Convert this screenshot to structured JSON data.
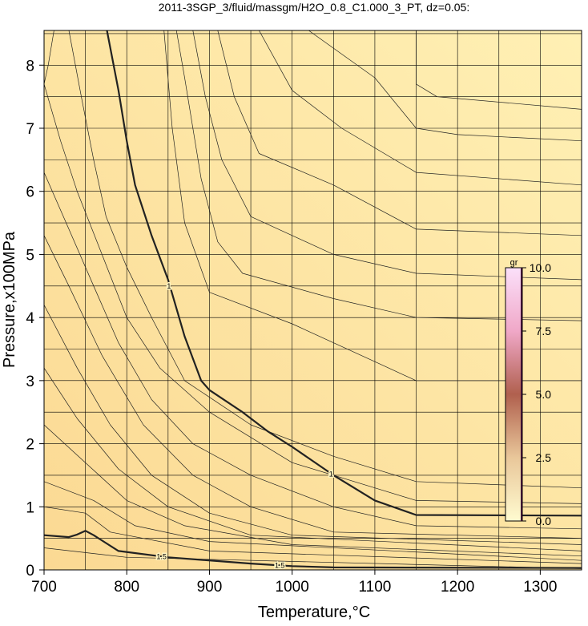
{
  "chart_data": {
    "type": "contour",
    "title": "2011-3SGP_3/fluid/massgm/H2O_0.8_C1.000_3_PT, dz=0.05:",
    "x_label": "Temperature,°C",
    "y_label": "Pressure,x100MPa",
    "xlim": [
      700,
      1350
    ],
    "ylim": [
      0,
      8.55
    ],
    "xticks": [
      700,
      800,
      900,
      1000,
      1100,
      1200,
      1300
    ],
    "yticks": [
      0,
      1,
      2,
      3,
      4,
      5,
      6,
      7,
      8
    ],
    "xgrid": [
      700,
      750,
      800,
      850,
      900,
      950,
      1000,
      1050,
      1100,
      1150,
      1200,
      1250,
      1300,
      1350
    ],
    "ygrid": [
      0.5,
      1,
      1.5,
      2,
      2.5,
      3,
      3.5,
      4,
      4.5,
      5,
      5.5,
      6,
      6.5,
      7,
      7.5,
      8,
      8.5
    ],
    "background": [
      "#fbd993",
      "#fff0b4"
    ],
    "contour_color": "#222222",
    "contours": [
      {
        "x": [
          776,
          790,
          800,
          810,
          830,
          850,
          870,
          890,
          900,
          940,
          970,
          1000,
          1050,
          1100,
          1150,
          1350
        ],
        "y": [
          8.55,
          7.6,
          6.8,
          6.1,
          5.3,
          4.6,
          3.7,
          3.0,
          2.85,
          2.5,
          2.2,
          1.95,
          1.5,
          1.1,
          0.87,
          0.86
        ],
        "linewidth": 2.2
      },
      {
        "x": [
          700,
          730,
          740,
          750,
          760,
          790,
          850,
          950,
          1000,
          1050,
          1350
        ],
        "y": [
          0.55,
          0.52,
          0.56,
          0.62,
          0.55,
          0.3,
          0.2,
          0.1,
          0.06,
          0.04,
          0.03
        ],
        "linewidth": 2.2
      },
      {
        "x": [
          1150,
          1150,
          1175,
          1350
        ],
        "y": [
          8.55,
          7.7,
          7.5,
          7.3
        ],
        "linewidth": 0.7
      },
      {
        "x": [
          1020,
          1100,
          1150,
          1200,
          1350
        ],
        "y": [
          8.55,
          7.8,
          7.0,
          6.9,
          6.8
        ],
        "linewidth": 0.7
      },
      {
        "x": [
          960,
          1000,
          1060,
          1150,
          1350
        ],
        "y": [
          8.55,
          7.6,
          7.0,
          6.3,
          6.1
        ],
        "linewidth": 0.7
      },
      {
        "x": [
          910,
          930,
          960,
          1050,
          1150,
          1350
        ],
        "y": [
          8.55,
          7.5,
          6.6,
          6.1,
          5.4,
          5.3
        ],
        "linewidth": 0.7
      },
      {
        "x": [
          880,
          895,
          915,
          950,
          1050,
          1150,
          1350
        ],
        "y": [
          8.55,
          7.5,
          6.5,
          5.6,
          5.0,
          4.7,
          4.6
        ],
        "linewidth": 0.7
      },
      {
        "x": [
          860,
          870,
          880,
          890,
          910,
          940,
          1050,
          1150,
          1350
        ],
        "y": [
          8.55,
          7.8,
          7.0,
          6.2,
          5.2,
          4.7,
          4.3,
          4.0,
          3.95
        ],
        "linewidth": 0.7
      },
      {
        "x": [
          845,
          855,
          870,
          900,
          1000,
          1100,
          1150,
          1350
        ],
        "y": [
          8.55,
          7.0,
          5.5,
          4.4,
          3.9,
          3.3,
          3.0,
          3.0
        ],
        "linewidth": 0.7
      },
      {
        "x": [
          730,
          745,
          760,
          775,
          800,
          830,
          870,
          950,
          1050,
          1150,
          1350
        ],
        "y": [
          8.55,
          7.5,
          6.5,
          5.6,
          4.8,
          4.0,
          3.0,
          2.3,
          1.8,
          1.4,
          1.3
        ],
        "linewidth": 0.7
      },
      {
        "x": [
          700,
          720,
          740,
          770,
          800,
          840,
          900,
          1000,
          1100,
          1150,
          1350
        ],
        "y": [
          7.7,
          6.8,
          6.0,
          5.0,
          4.0,
          3.2,
          2.5,
          1.7,
          1.3,
          1.1,
          1.05
        ],
        "linewidth": 0.7
      },
      {
        "x": [
          700,
          730,
          760,
          790,
          830,
          880,
          950,
          1050,
          1150,
          1350
        ],
        "y": [
          6.3,
          5.4,
          4.5,
          3.6,
          2.7,
          2.0,
          1.5,
          1.0,
          0.7,
          0.65
        ],
        "linewidth": 0.7
      },
      {
        "x": [
          700,
          730,
          770,
          820,
          880,
          950,
          1050,
          1350
        ],
        "y": [
          5.3,
          4.5,
          3.4,
          2.3,
          1.5,
          1.0,
          0.6,
          0.5
        ],
        "linewidth": 0.7
      },
      {
        "x": [
          700,
          740,
          780,
          830,
          900,
          1000,
          1350
        ],
        "y": [
          4.2,
          3.2,
          2.3,
          1.5,
          0.9,
          0.55,
          0.4
        ],
        "linewidth": 0.7
      },
      {
        "x": [
          700,
          740,
          790,
          850,
          950,
          1350
        ],
        "y": [
          3.2,
          2.4,
          1.6,
          1.0,
          0.55,
          0.3
        ],
        "linewidth": 0.7
      },
      {
        "x": [
          700,
          750,
          800,
          870,
          1000,
          1350
        ],
        "y": [
          2.3,
          1.7,
          1.1,
          0.7,
          0.4,
          0.22
        ],
        "linewidth": 0.7
      },
      {
        "x": [
          700,
          760,
          810,
          900,
          1350
        ],
        "y": [
          1.4,
          1.1,
          0.7,
          0.45,
          0.15
        ],
        "linewidth": 0.7
      },
      {
        "x": [
          700,
          750,
          780,
          900,
          1350
        ],
        "y": [
          1.0,
          0.9,
          0.6,
          0.3,
          0.1
        ],
        "linewidth": 0.7
      },
      {
        "x": [
          700,
          800,
          1350
        ],
        "y": [
          0.35,
          0.2,
          0.02
        ],
        "linewidth": 0.7
      },
      {
        "x": [
          712,
          705,
          700
        ],
        "y": [
          8.55,
          8.0,
          7.7
        ],
        "linewidth": 0.7
      }
    ],
    "contour_labels": [
      {
        "text": "1",
        "x": 851,
        "y": 4.5
      },
      {
        "text": "1",
        "x": 1047,
        "y": 1.52
      },
      {
        "text": "1.5",
        "x": 842,
        "y": 0.21
      },
      {
        "text": "1.5",
        "x": 985,
        "y": 0.07
      }
    ],
    "colorbar": {
      "label": "gr",
      "lim": [
        0,
        10
      ],
      "ticks": [
        {
          "value": 0,
          "label": "0.0"
        },
        {
          "value": 2.5,
          "label": "2.5"
        },
        {
          "value": 5,
          "label": "5.0"
        },
        {
          "value": 7.5,
          "label": "7.5"
        },
        {
          "value": 10,
          "label": "10.0"
        }
      ],
      "colors": [
        "#fffbd0",
        "#e9c79a",
        "#b0604e",
        "#f0a8c8",
        "#fbe0fa"
      ]
    }
  }
}
